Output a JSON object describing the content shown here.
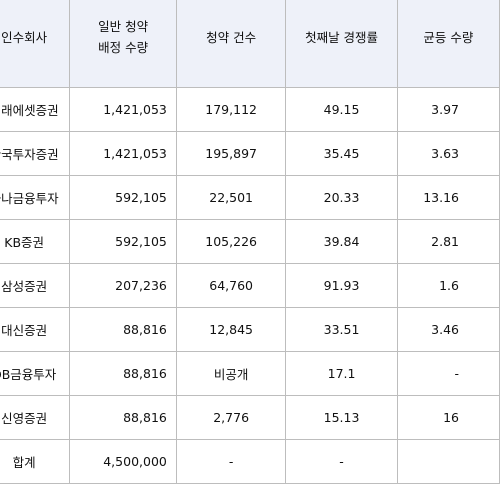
{
  "table": {
    "headers": [
      {
        "lines": [
          "인수회사"
        ]
      },
      {
        "lines": [
          "일반 청약",
          "배정 수량"
        ]
      },
      {
        "lines": [
          "청약 건수"
        ]
      },
      {
        "lines": [
          "첫째날 경쟁률"
        ]
      },
      {
        "lines": [
          "균등 수량"
        ]
      }
    ],
    "rows": [
      {
        "company": "미래에셋증권",
        "allocated": "1,421,053",
        "applications": "179,112",
        "competition": "49.15",
        "equal_shares": "3.97"
      },
      {
        "company": "한국투자증권",
        "allocated": "1,421,053",
        "applications": "195,897",
        "competition": "35.45",
        "equal_shares": "3.63"
      },
      {
        "company": "하나금융투자",
        "allocated": "592,105",
        "applications": "22,501",
        "competition": "20.33",
        "equal_shares": "13.16"
      },
      {
        "company": "KB증권",
        "allocated": "592,105",
        "applications": "105,226",
        "competition": "39.84",
        "equal_shares": "2.81"
      },
      {
        "company": "삼성증권",
        "allocated": "207,236",
        "applications": "64,760",
        "competition": "91.93",
        "equal_shares": "1.6"
      },
      {
        "company": "대신증권",
        "allocated": "88,816",
        "applications": "12,845",
        "competition": "33.51",
        "equal_shares": "3.46"
      },
      {
        "company": "DB금융투자",
        "allocated": "88,816",
        "applications": "비공개",
        "competition": "17.1",
        "equal_shares": "-"
      },
      {
        "company": "신영증권",
        "allocated": "88,816",
        "applications": "2,776",
        "competition": "15.13",
        "equal_shares": "16"
      },
      {
        "company": "합계",
        "allocated": "4,500,000",
        "applications": "-",
        "competition": "-",
        "equal_shares": ""
      }
    ]
  },
  "colors": {
    "header_bg": "#eef1f9",
    "border": "#bdbdbd"
  }
}
